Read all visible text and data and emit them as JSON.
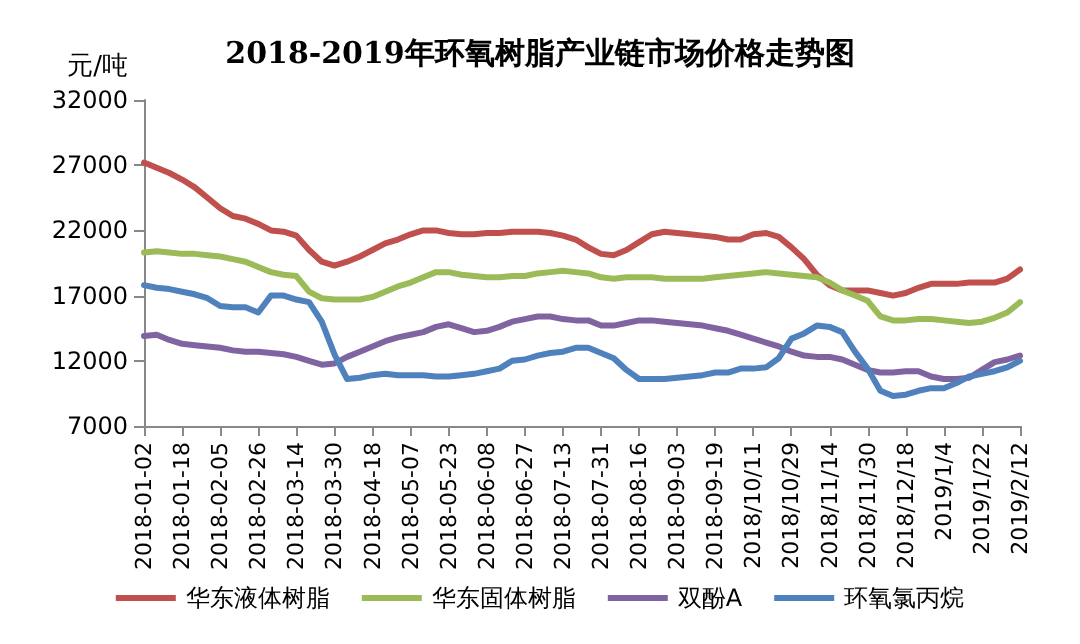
{
  "chart_data": {
    "type": "line",
    "title": "2018-2019年环氧树脂产业链市场价格走势图",
    "ylabel": "元/吨",
    "categories": [
      "2018-01-02",
      null,
      null,
      "2018-01-18",
      null,
      null,
      "2018-02-05",
      null,
      null,
      "2018-02-26",
      null,
      null,
      "2018-03-14",
      null,
      null,
      "2018-03-30",
      null,
      null,
      "2018-04-18",
      null,
      null,
      "2018-05-07",
      null,
      null,
      "2018-05-23",
      null,
      null,
      "2018-06-08",
      null,
      null,
      "2018-06-27",
      null,
      null,
      "2018-07-13",
      null,
      null,
      "2018-07-31",
      null,
      null,
      "2018-08-16",
      null,
      null,
      "2018-09-03",
      null,
      null,
      "2018-09-19",
      null,
      null,
      "2018/10/11",
      null,
      null,
      "2018/10/29",
      null,
      null,
      "2018/11/14",
      null,
      null,
      "2018/11/30",
      null,
      null,
      "2018/12/18",
      null,
      null,
      "2019/1/4",
      null,
      null,
      "2019/1/22",
      null,
      null,
      "2019/2/12"
    ],
    "series": [
      {
        "name": "华东液体树脂",
        "color": "#c0504d",
        "values": [
          27200,
          26800,
          26400,
          25900,
          25300,
          24500,
          23700,
          23100,
          22900,
          22500,
          22000,
          21900,
          21600,
          20500,
          19600,
          19300,
          19600,
          20000,
          20500,
          21000,
          21300,
          21700,
          22000,
          22000,
          21800,
          21700,
          21700,
          21800,
          21800,
          21900,
          21900,
          21900,
          21800,
          21600,
          21300,
          20700,
          20200,
          20100,
          20500,
          21100,
          21700,
          21900,
          21800,
          21700,
          21600,
          21500,
          21300,
          21300,
          21700,
          21800,
          21500,
          20700,
          19800,
          18600,
          17800,
          17400,
          17400,
          17400,
          17200,
          17000,
          17200,
          17600,
          17900,
          17900,
          17900,
          18000,
          18000,
          18000,
          18300,
          19000
        ]
      },
      {
        "name": "华东固体树脂",
        "color": "#9bbb59",
        "values": [
          20300,
          20400,
          20300,
          20200,
          20200,
          20100,
          20000,
          19800,
          19600,
          19200,
          18800,
          18600,
          18500,
          17300,
          16800,
          16700,
          16700,
          16700,
          16900,
          17300,
          17700,
          18000,
          18400,
          18800,
          18800,
          18600,
          18500,
          18400,
          18400,
          18500,
          18500,
          18700,
          18800,
          18900,
          18800,
          18700,
          18400,
          18300,
          18400,
          18400,
          18400,
          18300,
          18300,
          18300,
          18300,
          18400,
          18500,
          18600,
          18700,
          18800,
          18700,
          18600,
          18500,
          18400,
          18000,
          17400,
          17000,
          16600,
          15400,
          15100,
          15100,
          15200,
          15200,
          15100,
          15000,
          14900,
          15000,
          15300,
          15700,
          16500
        ]
      },
      {
        "name": "双酚A",
        "color": "#8064a2",
        "values": [
          13900,
          14000,
          13600,
          13300,
          13200,
          13100,
          13000,
          12800,
          12700,
          12700,
          12600,
          12500,
          12300,
          12000,
          11700,
          11800,
          12300,
          12700,
          13100,
          13500,
          13800,
          14000,
          14200,
          14600,
          14800,
          14500,
          14200,
          14300,
          14600,
          15000,
          15200,
          15400,
          15400,
          15200,
          15100,
          15100,
          14700,
          14700,
          14900,
          15100,
          15100,
          15000,
          14900,
          14800,
          14700,
          14500,
          14300,
          14000,
          13700,
          13400,
          13100,
          12700,
          12400,
          12300,
          12300,
          12100,
          11700,
          11300,
          11100,
          11100,
          11200,
          11200,
          10800,
          10600,
          10600,
          10700,
          11300,
          11900,
          12100,
          12400
        ]
      },
      {
        "name": "环氧氯丙烷",
        "color": "#4f81bd",
        "values": [
          17800,
          17600,
          17500,
          17300,
          17100,
          16800,
          16200,
          16100,
          16100,
          15700,
          17000,
          17000,
          16700,
          16500,
          15000,
          12500,
          10600,
          10700,
          10900,
          11000,
          10900,
          10900,
          10900,
          10800,
          10800,
          10900,
          11000,
          11200,
          11400,
          12000,
          12100,
          12400,
          12600,
          12700,
          13000,
          13000,
          12600,
          12200,
          11300,
          10600,
          10600,
          10600,
          10700,
          10800,
          10900,
          11100,
          11100,
          11400,
          11400,
          11500,
          12200,
          13700,
          14100,
          14700,
          14600,
          14200,
          12700,
          11400,
          9700,
          9300,
          9400,
          9700,
          9900,
          9900,
          10300,
          10800,
          11000,
          11200,
          11500,
          12000
        ]
      }
    ],
    "ylim": [
      7000,
      32000
    ],
    "yticks": [
      7000,
      12000,
      17000,
      22000,
      27000,
      32000
    ],
    "grid": false,
    "legend": "bottom",
    "marker": "none",
    "line_style": "solid"
  }
}
